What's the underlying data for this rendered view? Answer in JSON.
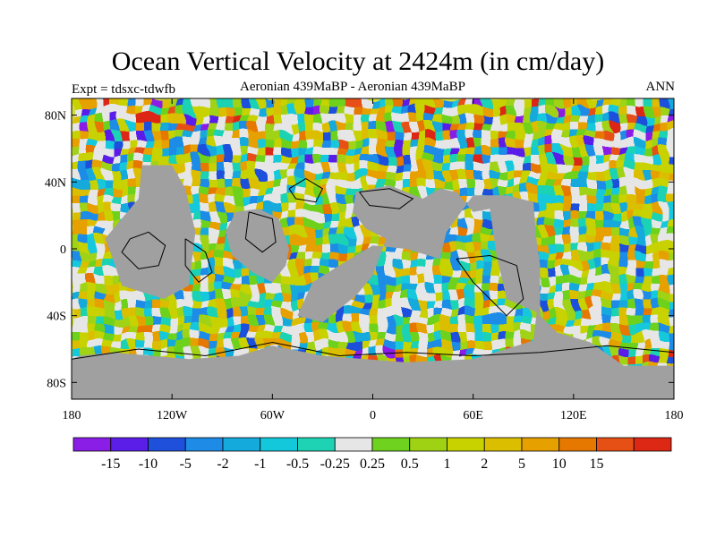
{
  "title": "Ocean Vertical Velocity at 2424m (in cm/day)",
  "experiment_label": "Expt = tdsxc-tdwfb",
  "subtitle": "Aeronian 439MaBP - Aeronian 439MaBP",
  "season": "ANN",
  "map": {
    "projection": "cylindrical equidistant",
    "lon_range": [
      -180,
      180
    ],
    "lat_range": [
      -90,
      90
    ],
    "land_color": "#a0a0a0",
    "x_ticks": [
      {
        "lon": -180,
        "label": "180"
      },
      {
        "lon": -120,
        "label": "120W"
      },
      {
        "lon": -60,
        "label": "60W"
      },
      {
        "lon": 0,
        "label": "0"
      },
      {
        "lon": 60,
        "label": "60E"
      },
      {
        "lon": 120,
        "label": "120E"
      },
      {
        "lon": 180,
        "label": "180"
      }
    ],
    "y_ticks": [
      {
        "lat": 80,
        "label": "80N"
      },
      {
        "lat": 40,
        "label": "40N"
      },
      {
        "lat": 0,
        "label": "0"
      },
      {
        "lat": -40,
        "label": "40S"
      },
      {
        "lat": -80,
        "label": "80S"
      }
    ]
  },
  "colorbar": {
    "colors": [
      "#8a1ee6",
      "#5a1ee8",
      "#1e50dc",
      "#1e8ce6",
      "#14aadc",
      "#14c8dc",
      "#1ed2b4",
      "#e6e6e6",
      "#6ed21e",
      "#a0d214",
      "#c8d200",
      "#dcbe00",
      "#e6a000",
      "#e67800",
      "#e65014",
      "#dc2814"
    ],
    "labels": [
      "-15",
      "-10",
      "-5",
      "-2",
      "-1",
      "-0.5",
      "-0.25",
      "0.25",
      "0.5",
      "1",
      "2",
      "5",
      "10",
      "15"
    ]
  }
}
